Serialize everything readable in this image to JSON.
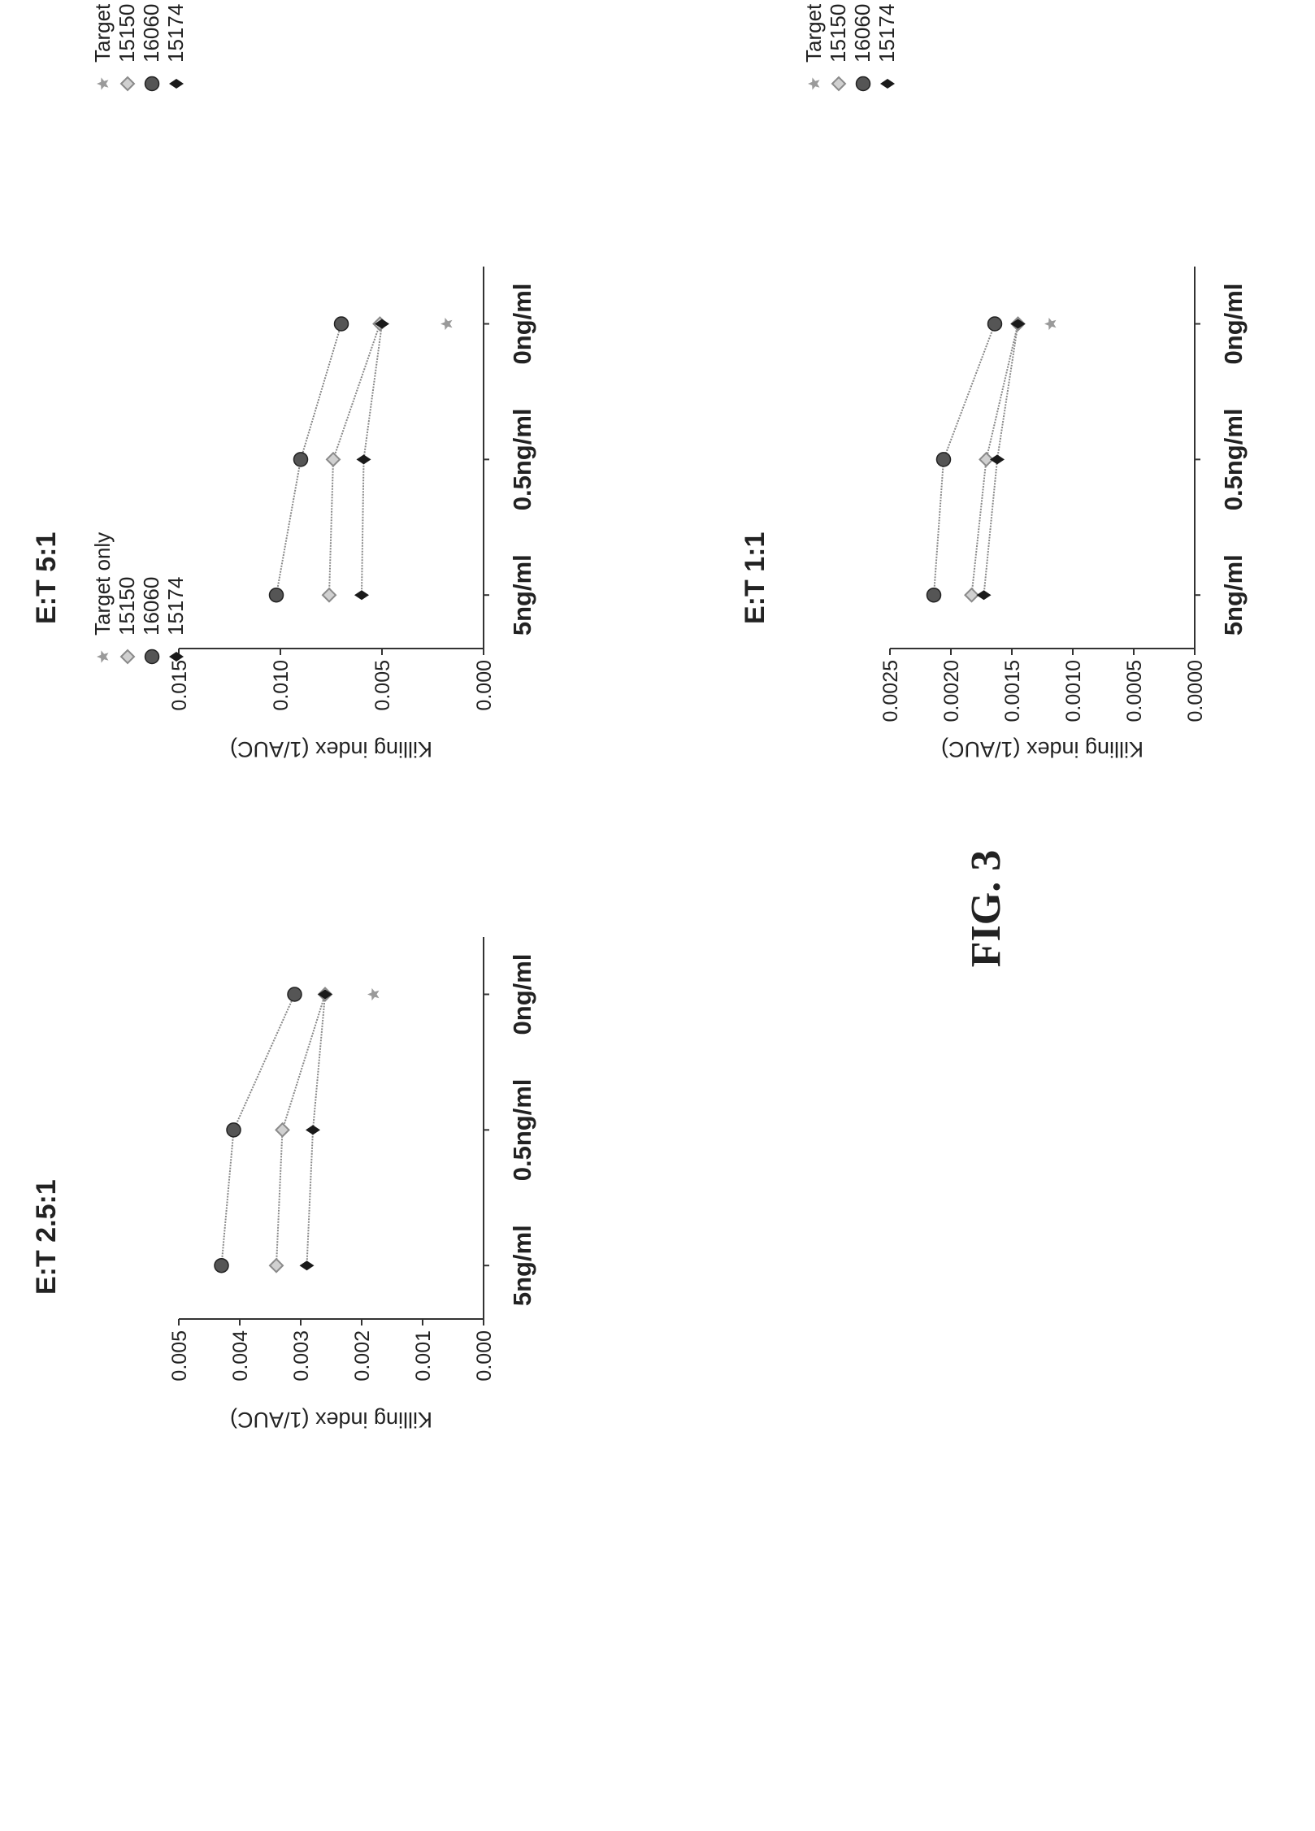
{
  "figure_label": "FIG. 3",
  "chart_data": [
    {
      "type": "line",
      "title": "E:T 5:1",
      "ylabel": "Killing index (1/AUC)",
      "xlabel": "",
      "categories": [
        "5ng/ml",
        "0.5ng/ml",
        "0ng/ml"
      ],
      "ylim": [
        0,
        0.015
      ],
      "yticks": [
        "0.000",
        "0.005",
        "0.010",
        "0.015"
      ],
      "legend_position": "right",
      "series": [
        {
          "name": "Target only",
          "values": [
            null,
            null,
            0.0018
          ]
        },
        {
          "name": "15150",
          "values": [
            0.0076,
            0.0074,
            0.0051
          ]
        },
        {
          "name": "16060",
          "values": [
            0.0102,
            0.009,
            0.007
          ]
        },
        {
          "name": "15174",
          "values": [
            0.006,
            0.0059,
            0.005
          ]
        }
      ]
    },
    {
      "type": "line",
      "title": "E:T 2.5:1",
      "ylabel": "Killing index (1/AUC)",
      "xlabel": "",
      "categories": [
        "5ng/ml",
        "0.5ng/ml",
        "0ng/ml"
      ],
      "ylim": [
        0,
        0.005
      ],
      "yticks": [
        "0.000",
        "0.001",
        "0.002",
        "0.003",
        "0.004",
        "0.005"
      ],
      "legend_position": "right",
      "series": [
        {
          "name": "Target only",
          "values": [
            null,
            null,
            0.0018
          ]
        },
        {
          "name": "15150",
          "values": [
            0.0034,
            0.0033,
            0.0026
          ]
        },
        {
          "name": "16060",
          "values": [
            0.0043,
            0.0041,
            0.0031
          ]
        },
        {
          "name": "15174",
          "values": [
            0.0029,
            0.0028,
            0.0026
          ]
        }
      ]
    },
    {
      "type": "line",
      "title": "E:T 1:1",
      "ylabel": "Killing index (1/AUC)",
      "xlabel": "",
      "categories": [
        "5ng/ml",
        "0.5ng/ml",
        "0ng/ml"
      ],
      "ylim": [
        0,
        0.0025
      ],
      "yticks": [
        "0.0000",
        "0.0005",
        "0.0010",
        "0.0015",
        "0.0020",
        "0.0025"
      ],
      "legend_position": "right",
      "series": [
        {
          "name": "Target only",
          "values": [
            null,
            null,
            0.00118
          ]
        },
        {
          "name": "15150",
          "values": [
            0.00183,
            0.00171,
            0.00145
          ]
        },
        {
          "name": "16060",
          "values": [
            0.00214,
            0.00206,
            0.00164
          ]
        },
        {
          "name": "15174",
          "values": [
            0.00173,
            0.00162,
            0.00145
          ]
        }
      ]
    }
  ],
  "marker_colors": {
    "Target only": "#9a9a9a",
    "15150": "#8a8a8a",
    "16060": "#555555",
    "15174": "#1a1a1a"
  },
  "line_color": "#888888",
  "axis_color": "#333333"
}
